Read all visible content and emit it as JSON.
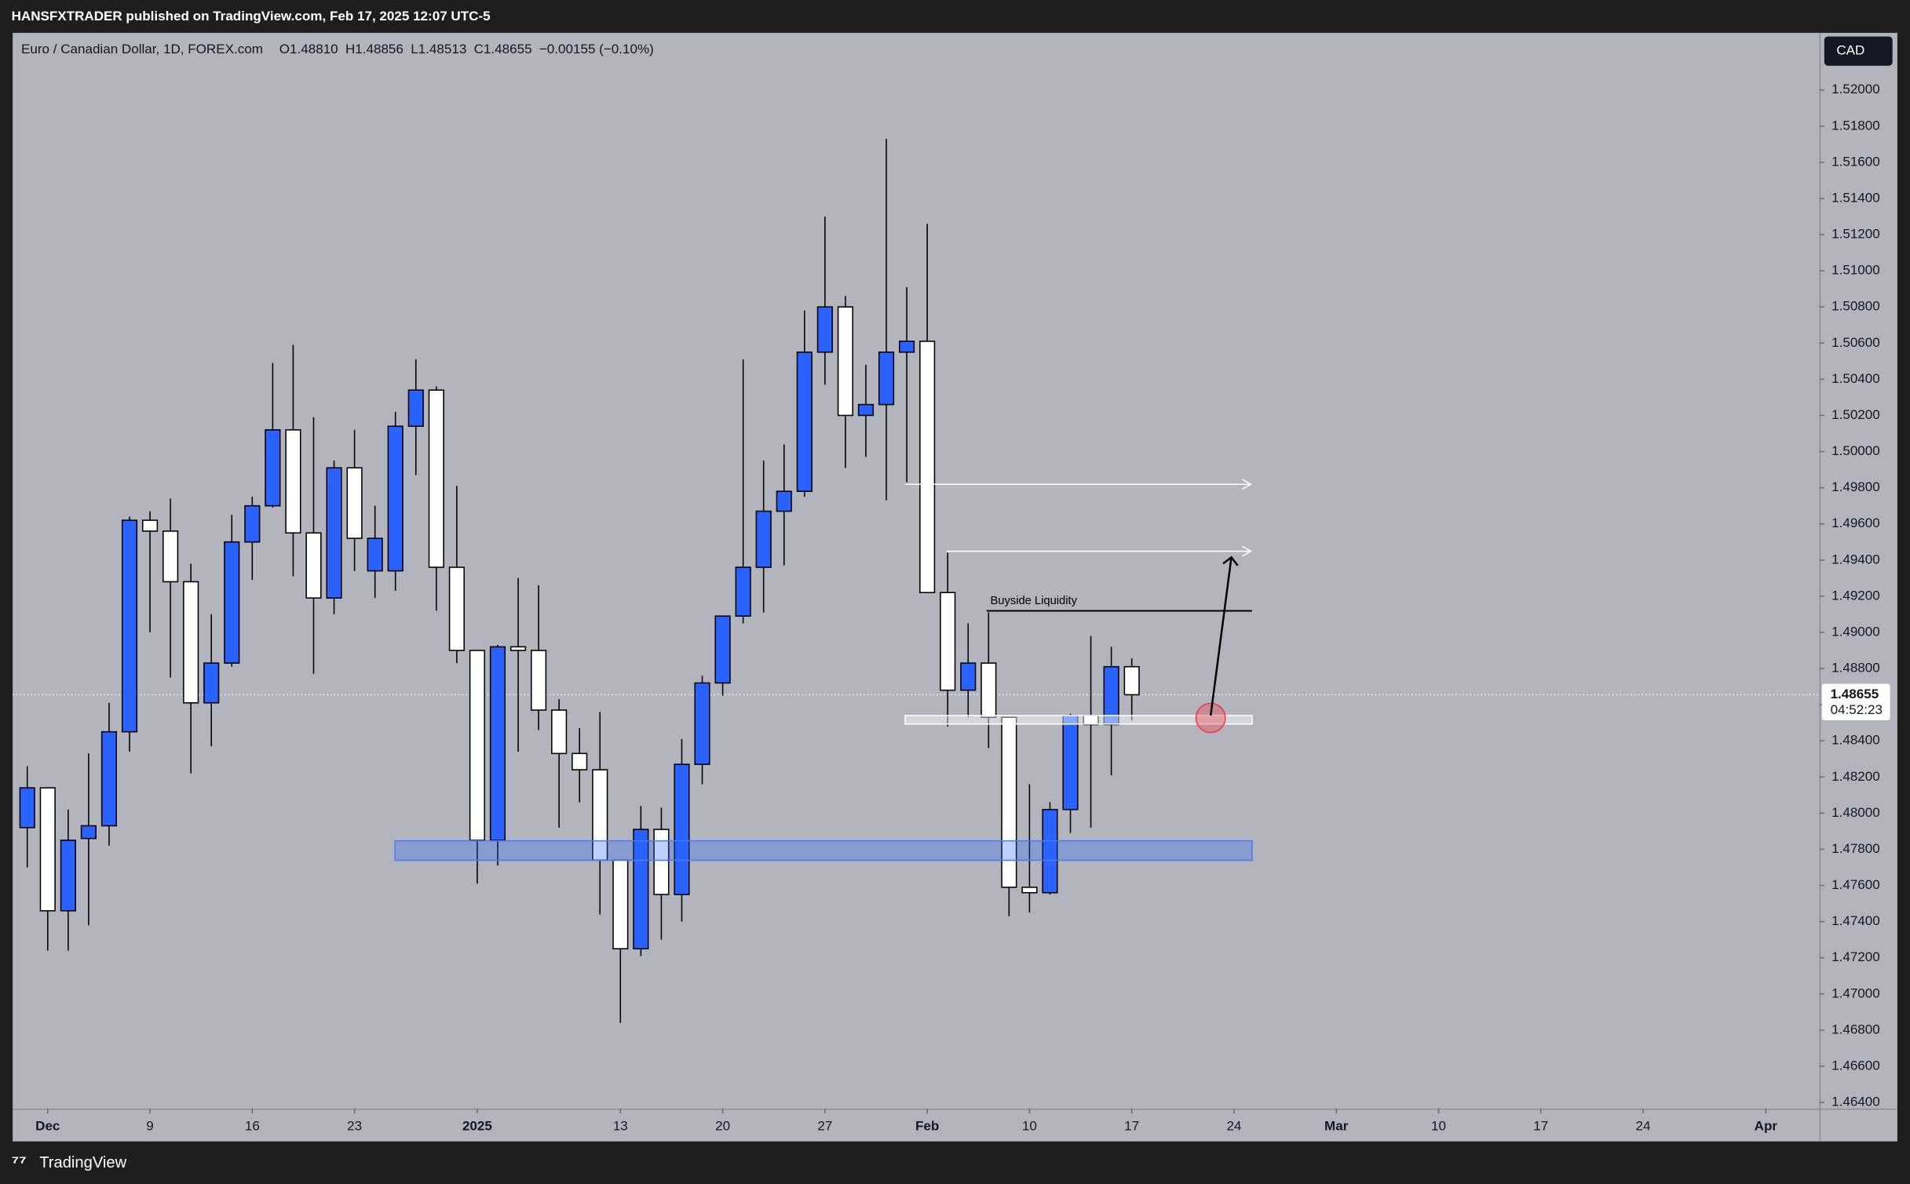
{
  "header": {
    "publisher": "HANSFXTRADER published on TradingView.com, Feb 17, 2025 12:07 UTC-5"
  },
  "footer": {
    "brand": "TradingView"
  },
  "chart_data": {
    "type": "candlestick",
    "title": "Euro / Canadian Dollar, 1D, FOREX.com",
    "ohlc_readout": [
      "O1.48810",
      "H1.48856",
      "L1.48513",
      "C1.48655",
      "−0.00155 (−0.10%)"
    ],
    "currency": "CAD",
    "last_price_label": "1.48655",
    "countdown": "04:52:23",
    "up_color": "#2962ff",
    "down_color": "#ffffff",
    "ylim": [
      1.46366,
      1.52316
    ],
    "yticks": [
      {
        "value": 1.464,
        "label": "1.46400"
      },
      {
        "value": 1.466,
        "label": "1.46600"
      },
      {
        "value": 1.468,
        "label": "1.46800"
      },
      {
        "value": 1.47,
        "label": "1.47000"
      },
      {
        "value": 1.472,
        "label": "1.47200"
      },
      {
        "value": 1.474,
        "label": "1.47400"
      },
      {
        "value": 1.476,
        "label": "1.47600"
      },
      {
        "value": 1.478,
        "label": "1.47800"
      },
      {
        "value": 1.48,
        "label": "1.48000"
      },
      {
        "value": 1.482,
        "label": "1.48200"
      },
      {
        "value": 1.484,
        "label": "1.48400"
      },
      {
        "value": 1.486,
        "label": "1.48600"
      },
      {
        "value": 1.488,
        "label": "1.48800"
      },
      {
        "value": 1.49,
        "label": "1.49000"
      },
      {
        "value": 1.492,
        "label": "1.49200"
      },
      {
        "value": 1.494,
        "label": "1.49400"
      },
      {
        "value": 1.496,
        "label": "1.49600"
      },
      {
        "value": 1.498,
        "label": "1.49800"
      },
      {
        "value": 1.5,
        "label": "1.50000"
      },
      {
        "value": 1.502,
        "label": "1.50200"
      },
      {
        "value": 1.504,
        "label": "1.50400"
      },
      {
        "value": 1.506,
        "label": "1.50600"
      },
      {
        "value": 1.508,
        "label": "1.50800"
      },
      {
        "value": 1.51,
        "label": "1.51000"
      },
      {
        "value": 1.512,
        "label": "1.51200"
      },
      {
        "value": 1.514,
        "label": "1.51400"
      },
      {
        "value": 1.516,
        "label": "1.51600"
      },
      {
        "value": 1.518,
        "label": "1.51800"
      },
      {
        "value": 1.52,
        "label": "1.52000"
      }
    ],
    "xlim": [
      -0.714,
      87.62
    ],
    "xticks": [
      {
        "value": 1,
        "label": "Dec"
      },
      {
        "value": 6,
        "label": "9"
      },
      {
        "value": 11,
        "label": "16"
      },
      {
        "value": 16,
        "label": "23"
      },
      {
        "value": 22,
        "label": "2025"
      },
      {
        "value": 29,
        "label": "13"
      },
      {
        "value": 34,
        "label": "20"
      },
      {
        "value": 39,
        "label": "27"
      },
      {
        "value": 44,
        "label": "Feb"
      },
      {
        "value": 49,
        "label": "10"
      },
      {
        "value": 54,
        "label": "17"
      },
      {
        "value": 59,
        "label": "24"
      },
      {
        "value": 64,
        "label": "Mar"
      },
      {
        "value": 69,
        "label": "10"
      },
      {
        "value": 74,
        "label": "17"
      },
      {
        "value": 79,
        "label": "24"
      },
      {
        "value": 85,
        "label": "Apr"
      }
    ],
    "open": [
      1.4792,
      1.4814,
      1.4746,
      1.4786,
      1.4793,
      1.4845,
      1.4962,
      1.4956,
      1.4928,
      1.4861,
      1.4883,
      1.495,
      1.497,
      1.5012,
      1.4955,
      1.4919,
      1.4991,
      1.4934,
      1.4934,
      1.5014,
      1.5034,
      1.4936,
      1.489,
      1.4785,
      1.4892,
      1.489,
      1.4857,
      1.4833,
      1.4824,
      1.4774,
      1.4725,
      1.4791,
      1.4755,
      1.4827,
      1.4872,
      1.4909,
      1.4936,
      1.4967,
      1.4978,
      1.5055,
      1.508,
      1.502,
      1.5026,
      1.5055,
      1.5061,
      1.4922,
      1.4868,
      1.4883,
      1.4853,
      1.4759,
      1.4756,
      1.4802,
      1.4854,
      1.4849,
      1.4881
    ],
    "high": [
      1.4826,
      1.4814,
      1.4802,
      1.4833,
      1.4861,
      1.4964,
      1.4967,
      1.4974,
      1.4938,
      1.491,
      1.4965,
      1.4975,
      1.5049,
      1.5059,
      1.5019,
      1.4995,
      1.5012,
      1.497,
      1.5022,
      1.5051,
      1.5036,
      1.4981,
      1.489,
      1.4893,
      1.493,
      1.4926,
      1.4863,
      1.4847,
      1.4856,
      1.4774,
      1.4804,
      1.4803,
      1.4841,
      1.4876,
      1.4909,
      1.5051,
      1.4995,
      1.5004,
      1.5078,
      1.513,
      1.5086,
      1.5048,
      1.5173,
      1.5091,
      1.5126,
      1.4944,
      1.4905,
      1.4911,
      1.4853,
      1.4816,
      1.4806,
      1.4855,
      1.4898,
      1.4892,
      1.48856
    ],
    "low": [
      1.477,
      1.4724,
      1.4724,
      1.4738,
      1.4782,
      1.4834,
      1.49,
      1.4875,
      1.4822,
      1.4837,
      1.4881,
      1.4929,
      1.4969,
      1.4931,
      1.4877,
      1.491,
      1.4934,
      1.4919,
      1.4923,
      1.4987,
      1.4912,
      1.4883,
      1.4761,
      1.4771,
      1.4834,
      1.4846,
      1.4792,
      1.4806,
      1.4744,
      1.4684,
      1.4721,
      1.473,
      1.474,
      1.4816,
      1.4865,
      1.4905,
      1.4911,
      1.4937,
      1.4975,
      1.5037,
      1.4991,
      1.4997,
      1.4973,
      1.4983,
      1.4922,
      1.4848,
      1.4853,
      1.4836,
      1.4743,
      1.4745,
      1.4755,
      1.4789,
      1.4792,
      1.4821,
      1.48513
    ],
    "close": [
      1.4814,
      1.4746,
      1.4785,
      1.4793,
      1.4845,
      1.4962,
      1.4956,
      1.4928,
      1.4861,
      1.4883,
      1.495,
      1.497,
      1.5012,
      1.4955,
      1.4919,
      1.4991,
      1.4952,
      1.4952,
      1.5014,
      1.5034,
      1.4936,
      1.489,
      1.4785,
      1.4892,
      1.489,
      1.4857,
      1.4833,
      1.4824,
      1.4774,
      1.4725,
      1.4791,
      1.4755,
      1.4827,
      1.4872,
      1.4909,
      1.4936,
      1.4967,
      1.4978,
      1.5055,
      1.508,
      1.502,
      1.5026,
      1.5055,
      1.5061,
      1.4922,
      1.4868,
      1.4883,
      1.4853,
      1.4759,
      1.4756,
      1.4802,
      1.4854,
      1.4849,
      1.4881,
      1.48655
    ],
    "annotation": "Buyside Liquidity"
  }
}
